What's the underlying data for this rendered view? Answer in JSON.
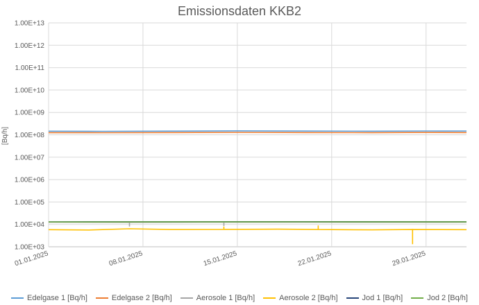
{
  "chart_data": {
    "type": "line",
    "title": "Emissionsdaten KKB2",
    "xlabel": "",
    "ylabel": "[Bq/h]",
    "yscale": "log",
    "ylim": [
      1000,
      10000000000000
    ],
    "ytick_labels": [
      "1.00E+13",
      "1.00E+12",
      "1.00E+11",
      "1.00E+10",
      "1.00E+09",
      "1.00E+08",
      "1.00E+07",
      "1.00E+06",
      "1.00E+05",
      "1.00E+04",
      "1.00E+03"
    ],
    "xlim": [
      "2025-01-01",
      "2025-02-01"
    ],
    "xtick_labels": [
      "01.01.2025",
      "08.01.2025",
      "15.01.2025",
      "22.01.2025",
      "29.01.2025"
    ],
    "grid": true,
    "legend_position": "bottom",
    "series": [
      {
        "name": "Edelgase 1 [Bq/h]",
        "color": "#5B9BD5",
        "x": [
          "2025-01-01",
          "2025-01-05",
          "2025-01-10",
          "2025-01-15",
          "2025-01-20",
          "2025-01-25",
          "2025-01-29",
          "2025-02-01"
        ],
        "values": [
          145000000,
          143000000,
          146000000,
          150000000,
          147000000,
          145000000,
          148000000,
          147000000
        ]
      },
      {
        "name": "Edelgase 2 [Bq/h]",
        "color": "#ED7D31",
        "x": [
          "2025-01-01",
          "2025-01-05",
          "2025-01-10",
          "2025-01-15",
          "2025-01-20",
          "2025-01-25",
          "2025-01-29",
          "2025-02-01"
        ],
        "values": [
          125000000,
          124000000,
          126000000,
          128000000,
          126000000,
          125000000,
          127000000,
          126000000
        ]
      },
      {
        "name": "Aerosole 1 [Bq/h]",
        "color": "#A5A5A5",
        "x": [
          "2025-01-01",
          "2025-01-07",
          "2025-01-07",
          "2025-01-07",
          "2025-01-14",
          "2025-01-14",
          "2025-01-14",
          "2025-01-20",
          "2025-01-29",
          "2025-02-01"
        ],
        "values": [
          12500,
          12300,
          8000,
          12300,
          12600,
          8500,
          12600,
          12500,
          12400,
          12500
        ]
      },
      {
        "name": "Aerosole 2 [Bq/h]",
        "color": "#FFC000",
        "x": [
          "2025-01-01",
          "2025-01-04",
          "2025-01-07",
          "2025-01-10",
          "2025-01-14",
          "2025-01-14",
          "2025-01-14",
          "2025-01-18",
          "2025-01-21",
          "2025-01-21",
          "2025-01-21",
          "2025-01-25",
          "2025-01-28",
          "2025-01-28",
          "2025-01-28",
          "2025-02-01"
        ],
        "values": [
          5800,
          5600,
          6400,
          5900,
          6000,
          8000,
          6000,
          6100,
          5900,
          9000,
          5900,
          5700,
          5900,
          1300,
          5900,
          5800
        ]
      },
      {
        "name": "Jod 1 [Bq/h]",
        "color": "#264478",
        "x": [
          "2025-01-01",
          "2025-01-10",
          "2025-01-20",
          "2025-02-01"
        ],
        "values": [
          13000,
          13100,
          13200,
          13100
        ]
      },
      {
        "name": "Jod 2 [Bq/h]",
        "color": "#70AD47",
        "x": [
          "2025-01-01",
          "2025-01-10",
          "2025-01-20",
          "2025-02-01"
        ],
        "values": [
          12800,
          12900,
          13000,
          12900
        ]
      }
    ]
  }
}
